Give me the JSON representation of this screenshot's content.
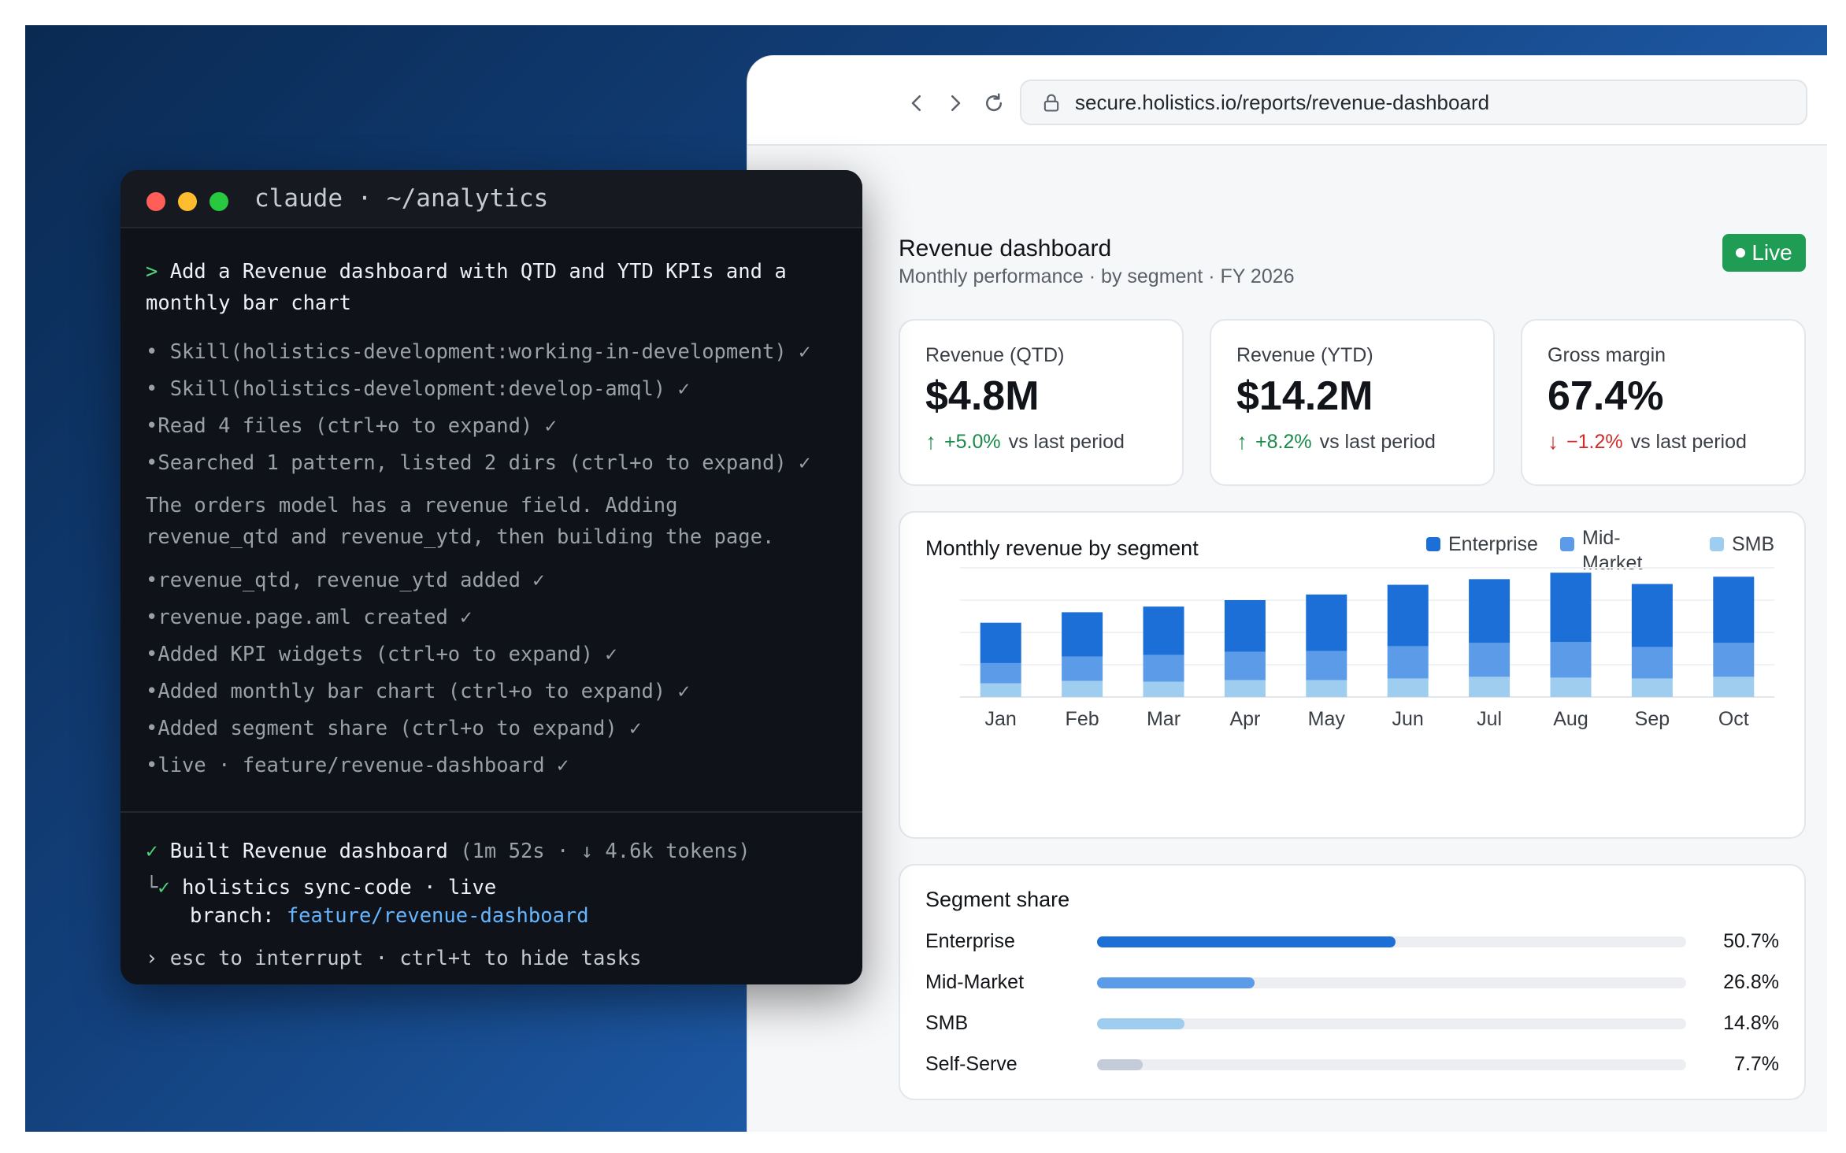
{
  "terminal": {
    "title": "claude · ~/analytics",
    "prompt_line1": "> Add a Revenue dashboard with QTD and YTD KPIs and a",
    "prompt_line2": "monthly bar chart",
    "tasks": [
      "• Skill(holistics-development:working-in-development) ✓",
      "• Skill(holistics-development:develop-amql) ✓",
      "•Read 4 files (ctrl+o to expand) ✓",
      "•Searched 1 pattern, listed 2 dirs (ctrl+o to expand) ✓"
    ],
    "message_line1": "The orders model has a revenue field. Adding",
    "message_line2": "revenue_qtd and revenue_ytd, then building the page.",
    "steps": [
      "•revenue_qtd, revenue_ytd added ✓",
      "•revenue.page.aml created ✓",
      "•Added KPI widgets (ctrl+o to expand) ✓",
      "•Added monthly bar chart (ctrl+o to expand) ✓",
      "•Added segment share (ctrl+o to expand) ✓",
      "•live · feature/revenue-dashboard ✓"
    ],
    "built_check": "✓",
    "built_label": "Built Revenue dashboard",
    "built_meta": "(1m 52s · ↓ 4.6k tokens)",
    "sync_prefix": "└",
    "sync_check": "✓",
    "sync_label": "holistics sync-code · live",
    "branch_label": "branch:",
    "branch_value": "feature/revenue-dashboard",
    "hint": "› esc to interrupt · ctrl+t to hide tasks"
  },
  "browser": {
    "url": "secure.holistics.io/reports/revenue-dashboard"
  },
  "dashboard": {
    "title": "Revenue dashboard",
    "subtitle": "Monthly performance · by segment · FY 2026",
    "live_label": "Live",
    "kpis": [
      {
        "label": "Revenue (QTD)",
        "value": "$4.8M",
        "arrow": "↑",
        "delta": "+5.0%",
        "suffix": "vs last period"
      },
      {
        "label": "Revenue (YTD)",
        "value": "$14.2M",
        "arrow": "↑",
        "delta": "+8.2%",
        "suffix": "vs last period"
      },
      {
        "label": "Gross margin",
        "value": "67.4%",
        "arrow": "↓",
        "delta": "−1.2%",
        "suffix": "vs last period"
      }
    ],
    "segment_title": "Segment share",
    "segments": [
      {
        "label": "Enterprise",
        "value": "50.7%",
        "fraction": 0.507,
        "color": "#1d6fd8"
      },
      {
        "label": "Mid-Market",
        "value": "26.8%",
        "fraction": 0.268,
        "color": "#5b9be8"
      },
      {
        "label": "SMB",
        "value": "14.8%",
        "fraction": 0.148,
        "color": "#9fcdf0"
      },
      {
        "label": "Self-Serve",
        "value": "7.7%",
        "fraction": 0.077,
        "color": "#c3ccd8"
      }
    ],
    "colors": {
      "up": "#1a8a4a",
      "down": "#d12b2b",
      "live": "#1f9d55"
    }
  },
  "chart_data": {
    "type": "bar",
    "title": "Monthly revenue by segment",
    "stacked": true,
    "categories": [
      "Jan",
      "Feb",
      "Mar",
      "Apr",
      "May",
      "Jun",
      "Jul",
      "Aug",
      "Sep",
      "Oct"
    ],
    "series": [
      {
        "name": "SMB",
        "color": "#9fcdf0",
        "values": [
          17,
          20,
          19,
          21,
          21,
          23,
          25,
          24,
          23,
          25
        ]
      },
      {
        "name": "Mid-Market",
        "color": "#5b9be8",
        "values": [
          25,
          30,
          33,
          35,
          36,
          40,
          42,
          44,
          39,
          42
        ]
      },
      {
        "name": "Enterprise",
        "color": "#1d6fd8",
        "values": [
          50,
          55,
          60,
          64,
          70,
          76,
          79,
          86,
          78,
          82
        ]
      }
    ],
    "legend_order": [
      "Enterprise",
      "Mid-Market",
      "SMB"
    ],
    "legend_position": "top-right",
    "ylim": [
      0,
      160
    ],
    "grid": true
  }
}
